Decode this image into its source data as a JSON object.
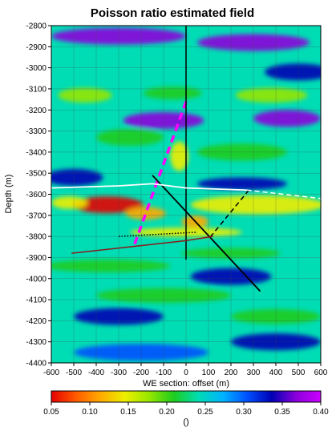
{
  "chart_data": {
    "type": "heatmap",
    "title": "Poisson ratio estimated field",
    "xlabel": "WE section: offset (m)",
    "ylabel": "Depth (m)",
    "xlim": [
      -600,
      600
    ],
    "ylim": [
      -4400,
      -2800
    ],
    "x_ticks": [
      -600,
      -500,
      -400,
      -300,
      -200,
      -100,
      0,
      100,
      200,
      300,
      400,
      500,
      600
    ],
    "y_ticks": [
      -2800,
      -2900,
      -3000,
      -3100,
      -3200,
      -3300,
      -3400,
      -3500,
      -3600,
      -3700,
      -3800,
      -3900,
      -4000,
      -4100,
      -4200,
      -4300,
      -4400
    ],
    "grid": true,
    "colorbar": {
      "min": 0.05,
      "max": 0.4,
      "ticks": [
        "0.05",
        "0.10",
        "0.15",
        "0.20",
        "0.25",
        "0.30",
        "0.35",
        "0.40"
      ],
      "unit_label": "()",
      "colormap": [
        "#e60000",
        "#ff5a00",
        "#ffaa00",
        "#eeee00",
        "#96e600",
        "#1ecc1e",
        "#00dcb4",
        "#00b4ff",
        "#0050ff",
        "#0000b4",
        "#8c00dc",
        "#cc00ff"
      ]
    },
    "background_value": 0.255,
    "anomalies": [
      {
        "x": -350,
        "y": -3650,
        "rx": 160,
        "ry": 40,
        "value": 0.06
      },
      {
        "x": -180,
        "y": -3690,
        "rx": 90,
        "ry": 30,
        "value": 0.12
      },
      {
        "x": 40,
        "y": -3730,
        "rx": 60,
        "ry": 30,
        "value": 0.1
      },
      {
        "x": 320,
        "y": -3650,
        "rx": 300,
        "ry": 45,
        "value": 0.16
      },
      {
        "x": -520,
        "y": -3640,
        "rx": 80,
        "ry": 30,
        "value": 0.15
      },
      {
        "x": -30,
        "y": -3420,
        "rx": 40,
        "ry": 70,
        "value": 0.16
      },
      {
        "x": 0,
        "y": -3780,
        "rx": 250,
        "ry": 22,
        "value": 0.15
      },
      {
        "x": -350,
        "y": -3940,
        "rx": 280,
        "ry": 30,
        "value": 0.2
      },
      {
        "x": 200,
        "y": -3880,
        "rx": 220,
        "ry": 25,
        "value": 0.21
      },
      {
        "x": -450,
        "y": -3130,
        "rx": 120,
        "ry": 35,
        "value": 0.18
      },
      {
        "x": -60,
        "y": -3120,
        "rx": 130,
        "ry": 30,
        "value": 0.2
      },
      {
        "x": 380,
        "y": -3130,
        "rx": 160,
        "ry": 35,
        "value": 0.19
      },
      {
        "x": -250,
        "y": -3330,
        "rx": 150,
        "ry": 40,
        "value": 0.21
      },
      {
        "x": 250,
        "y": -3400,
        "rx": 200,
        "ry": 40,
        "value": 0.21
      },
      {
        "x": -100,
        "y": -4080,
        "rx": 300,
        "ry": 35,
        "value": 0.22
      },
      {
        "x": 400,
        "y": -4180,
        "rx": 200,
        "ry": 35,
        "value": 0.21
      },
      {
        "x": -300,
        "y": -2850,
        "rx": 300,
        "ry": 40,
        "value": 0.38
      },
      {
        "x": 300,
        "y": -2880,
        "rx": 250,
        "ry": 40,
        "value": 0.37
      },
      {
        "x": -100,
        "y": -3250,
        "rx": 180,
        "ry": 40,
        "value": 0.37
      },
      {
        "x": 450,
        "y": -3240,
        "rx": 150,
        "ry": 40,
        "value": 0.36
      },
      {
        "x": -500,
        "y": -3520,
        "rx": 130,
        "ry": 40,
        "value": 0.34
      },
      {
        "x": 250,
        "y": -3550,
        "rx": 200,
        "ry": 30,
        "value": 0.33
      },
      {
        "x": 200,
        "y": -3990,
        "rx": 180,
        "ry": 40,
        "value": 0.33
      },
      {
        "x": -300,
        "y": -4180,
        "rx": 200,
        "ry": 40,
        "value": 0.33
      },
      {
        "x": 400,
        "y": -4300,
        "rx": 200,
        "ry": 40,
        "value": 0.34
      },
      {
        "x": -200,
        "y": -4350,
        "rx": 300,
        "ry": 40,
        "value": 0.31
      },
      {
        "x": 500,
        "y": -3020,
        "rx": 150,
        "ry": 40,
        "value": 0.34
      }
    ],
    "overlays": [
      {
        "color": "#ff00ff",
        "style": "dashed",
        "width": 3.5,
        "points": [
          [
            0,
            -3160
          ],
          [
            -230,
            -3840
          ]
        ]
      },
      {
        "color": "#000000",
        "style": "solid",
        "width": 1.8,
        "points": [
          [
            -150,
            -3510
          ],
          [
            330,
            -4060
          ]
        ]
      },
      {
        "color": "#000000",
        "style": "dashed",
        "width": 1.5,
        "points": [
          [
            280,
            -3580
          ],
          [
            110,
            -3800
          ]
        ]
      },
      {
        "color": "#000000",
        "style": "dotted",
        "width": 1.5,
        "points": [
          [
            -300,
            -3800
          ],
          [
            50,
            -3780
          ]
        ]
      },
      {
        "color": "#000000",
        "style": "solid",
        "width": 1.5,
        "points": [
          [
            0,
            -2800
          ],
          [
            0,
            -3910
          ]
        ]
      },
      {
        "color": "#8b1a1a",
        "style": "solid",
        "width": 1.5,
        "points": [
          [
            -510,
            -3880
          ],
          [
            0,
            -3820
          ],
          [
            120,
            -3800
          ]
        ]
      },
      {
        "color": "#ffffff",
        "style": "solid",
        "width": 1.8,
        "points": [
          [
            -600,
            -3570
          ],
          [
            -300,
            -3560
          ],
          [
            -150,
            -3550
          ],
          [
            0,
            -3570
          ],
          [
            270,
            -3580
          ]
        ]
      },
      {
        "color": "#ffffff",
        "style": "dashed",
        "width": 1.5,
        "points": [
          [
            270,
            -3580
          ],
          [
            600,
            -3620
          ]
        ]
      }
    ]
  }
}
